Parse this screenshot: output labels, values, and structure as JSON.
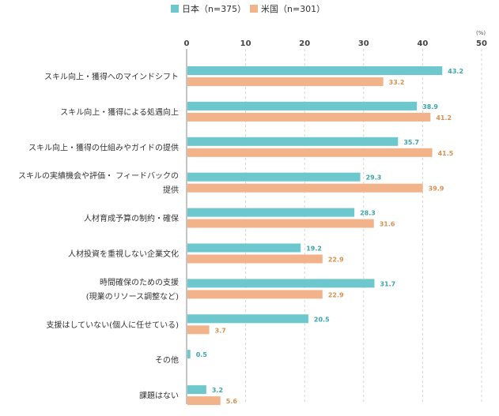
{
  "chart_data": {
    "type": "bar",
    "orientation": "horizontal",
    "unit": "(%)",
    "xlim": [
      0,
      50
    ],
    "xticks": [
      "0",
      "10",
      "20",
      "30",
      "40",
      "50"
    ],
    "grid": "vertical dashed",
    "legend_position": "top",
    "categories": [
      [
        "スキル向上・獲得へのマインドシフト"
      ],
      [
        "スキル向上・獲得による処遇向上"
      ],
      [
        "スキル向上・獲得の仕組みやガイドの提供"
      ],
      [
        "スキルの実績機会や評価・ フィードバックの",
        "提供"
      ],
      [
        "人材育成予算の制約・確保"
      ],
      [
        "人材投資を重視しない企業文化"
      ],
      [
        "時間確保のための支援",
        "(現業のリソース調整など)"
      ],
      [
        "支援はしていない(個人に任せている)"
      ],
      [
        "その他"
      ],
      [
        "課題はない"
      ]
    ],
    "series": [
      {
        "name": "日本（n=375）",
        "color": "#6cc8cc",
        "label_color": "#3aa5ab",
        "values": [
          43.2,
          38.9,
          35.7,
          29.3,
          28.3,
          19.2,
          31.7,
          20.5,
          0.5,
          3.2
        ],
        "labels": [
          "43.2",
          "38.9",
          "35.7",
          "29.3",
          "28.3",
          "19.2",
          "31.7",
          "20.5",
          "0.5",
          "3.2"
        ]
      },
      {
        "name": "米国（n=301）",
        "color": "#f2b38b",
        "label_color": "#d9904f",
        "values": [
          33.2,
          41.2,
          41.5,
          39.9,
          31.6,
          22.9,
          22.9,
          3.7,
          null,
          5.6
        ],
        "labels": [
          "33.2",
          "41.2",
          "41.5",
          "39.9",
          "31.6",
          "22.9",
          "22.9",
          "3.7",
          null,
          "5.6"
        ]
      }
    ]
  }
}
